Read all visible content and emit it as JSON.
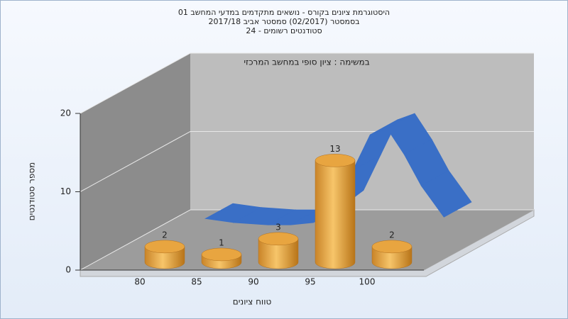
{
  "chart_data": {
    "type": "bar",
    "title_lines": [
      "היסטוגרמת ציונים בקורס - נושאים מתקדמים במדעי המחשב 01",
      "בסמסטר  (02/2017)  סמסטר אביב 2017/18",
      "סטודנטים רשומים - 24"
    ],
    "annotation": "במשימה : ציון סופי במחשב המרכזי",
    "x_label": "טווח ציונים",
    "y_label": "מספר סטודנטים",
    "categories": [
      "80",
      "85",
      "90",
      "95",
      "100"
    ],
    "values": [
      2,
      1,
      3,
      13,
      2
    ],
    "color": "#e0a040",
    "ylim": [
      0,
      20
    ],
    "yticks": [
      0,
      10,
      20
    ],
    "grid": true,
    "curve": {
      "x": [
        78.5,
        81,
        84,
        86,
        88,
        90,
        91.5,
        93,
        94.5,
        96,
        97.5,
        99.5
      ],
      "values": [
        0.8,
        0.3,
        0,
        0,
        0.3,
        2.5,
        7,
        11.5,
        12.3,
        9,
        5,
        1
      ],
      "color": "#3a6fc6"
    }
  }
}
